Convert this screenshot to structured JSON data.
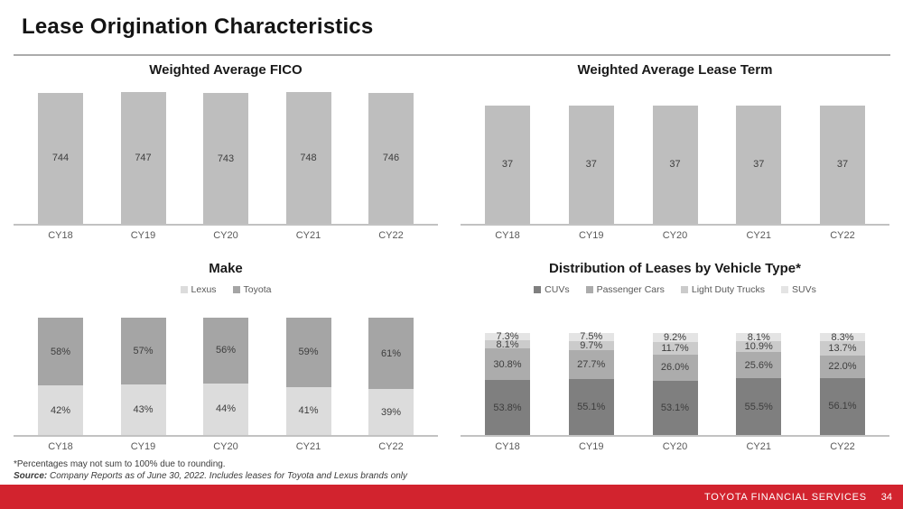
{
  "slide": {
    "title": "Lease Origination Characteristics",
    "footnote": "*Percentages may not sum to 100% due to rounding.",
    "source_label": "Source:",
    "source_text": " Company Reports as of June 30, 2022. Includes leases for Toyota and Lexus brands only",
    "footer": {
      "brand": "TOYOTA FINANCIAL SERVICES",
      "page_number": "34",
      "bar_color": "#D2232E"
    }
  },
  "chart_data": [
    {
      "type": "bar",
      "title": "Weighted Average FICO",
      "categories": [
        "CY18",
        "CY19",
        "CY20",
        "CY21",
        "CY22"
      ],
      "values": [
        744,
        747,
        743,
        748,
        746
      ],
      "labels": [
        "744",
        "747",
        "743",
        "748",
        "746"
      ],
      "bar_color": "#BEBEBE",
      "ylim": [
        0,
        800
      ],
      "grid": false,
      "legend_position": "none"
    },
    {
      "type": "bar",
      "title": "Weighted Average Lease Term",
      "categories": [
        "CY18",
        "CY19",
        "CY20",
        "CY21",
        "CY22"
      ],
      "values": [
        37,
        37,
        37,
        37,
        37
      ],
      "labels": [
        "37",
        "37",
        "37",
        "37",
        "37"
      ],
      "bar_color": "#BEBEBE",
      "ylim": [
        0,
        44
      ],
      "grid": false,
      "legend_position": "none"
    },
    {
      "type": "bar",
      "stacked": true,
      "title": "Make",
      "categories": [
        "CY18",
        "CY19",
        "CY20",
        "CY21",
        "CY22"
      ],
      "series": [
        {
          "name": "Lexus",
          "color": "#DCDCDC",
          "values": [
            42,
            43,
            44,
            41,
            39
          ],
          "labels": [
            "42%",
            "43%",
            "44%",
            "41%",
            "39%"
          ]
        },
        {
          "name": "Toyota",
          "color": "#A5A5A5",
          "values": [
            58,
            57,
            56,
            59,
            61
          ],
          "labels": [
            "58%",
            "57%",
            "56%",
            "59%",
            "61%"
          ]
        }
      ],
      "ylim": [
        0,
        100
      ],
      "grid": false,
      "legend_position": "top"
    },
    {
      "type": "bar",
      "stacked": true,
      "title": "Distribution of Leases by Vehicle Type*",
      "categories": [
        "CY18",
        "CY19",
        "CY20",
        "CY21",
        "CY22"
      ],
      "series": [
        {
          "name": "CUVs",
          "color": "#7F7F7F",
          "values": [
            53.8,
            55.1,
            53.1,
            55.5,
            56.1
          ],
          "labels": [
            "53.8%",
            "55.1%",
            "53.1%",
            "55.5%",
            "56.1%"
          ]
        },
        {
          "name": "Passenger Cars",
          "color": "#ACACAC",
          "values": [
            30.8,
            27.7,
            26.0,
            25.6,
            22.0
          ],
          "labels": [
            "30.8%",
            "27.7%",
            "26.0%",
            "25.6%",
            "22.0%"
          ]
        },
        {
          "name": "Light Duty Trucks",
          "color": "#CBCBCB",
          "values": [
            8.1,
            9.7,
            11.7,
            10.9,
            13.7
          ],
          "labels": [
            "8.1%",
            "9.7%",
            "11.7%",
            "10.9%",
            "13.7%"
          ]
        },
        {
          "name": "SUVs",
          "color": "#E4E4E4",
          "values": [
            7.3,
            7.5,
            9.2,
            8.1,
            8.3
          ],
          "labels": [
            "7.3%",
            "7.5%",
            "9.2%",
            "8.1%",
            "8.3%"
          ]
        }
      ],
      "ylim": [
        0,
        100
      ],
      "grid": false,
      "legend_position": "top"
    }
  ]
}
